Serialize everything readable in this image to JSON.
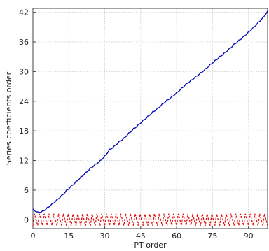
{
  "chart_data": {
    "type": "line",
    "xlabel": "PT order",
    "ylabel": "Series coefficients order",
    "xlim": [
      0,
      98
    ],
    "ylim": [
      -1.8,
      42.8
    ],
    "xticks": [
      "0",
      "15",
      "30",
      "45",
      "60",
      "75",
      "90"
    ],
    "yticks": [
      "0",
      "6",
      "12",
      "18",
      "24",
      "30",
      "36",
      "42"
    ],
    "grid": true,
    "legend": "none",
    "series": [
      {
        "color": "#0a10b8",
        "x": [
          0,
          2,
          4,
          6,
          8,
          10,
          12,
          14,
          16,
          18,
          20,
          22,
          24,
          26,
          28,
          30,
          32,
          34,
          36,
          38,
          40,
          42,
          44,
          46,
          48,
          50,
          52,
          54,
          56,
          58,
          60,
          62,
          64,
          66,
          68,
          70,
          72,
          74,
          76,
          78,
          80,
          82,
          84,
          86,
          88,
          90,
          92,
          94,
          96,
          98
        ],
        "y": [
          2.2,
          1.6,
          1.8,
          2.5,
          3.3,
          4.1,
          5.0,
          6.0,
          6.9,
          7.8,
          8.7,
          9.6,
          10.5,
          11.3,
          12.0,
          13.0,
          14.3,
          15.0,
          15.9,
          16.6,
          17.6,
          18.5,
          19.3,
          20.2,
          21.0,
          21.9,
          22.6,
          23.5,
          24.3,
          25.0,
          25.8,
          26.7,
          27.6,
          28.3,
          29.1,
          29.8,
          30.6,
          31.5,
          32.3,
          33.1,
          33.9,
          34.7,
          35.6,
          36.4,
          37.2,
          38.1,
          39.0,
          40.0,
          41.0,
          42.3
        ]
      },
      {
        "color": "#e01010",
        "x_range": [
          0,
          98
        ],
        "low": -1.2,
        "high": 1.2,
        "cycles": 49
      }
    ]
  }
}
